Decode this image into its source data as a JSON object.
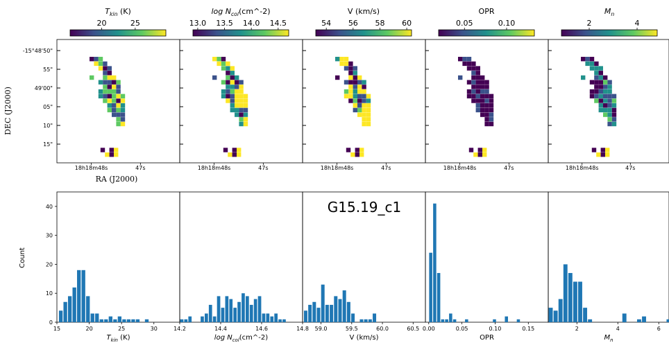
{
  "figure": {
    "title": "G15.19_c1",
    "map_ylabel": "DEC (J2000)",
    "map_xlabel": "RA (J2000)",
    "hist_ylabel": "Count",
    "ra_ticks": [
      "18h18m48s",
      "47s"
    ],
    "dec_ticks": [
      "-15°48'50\"",
      "55\"",
      "49'00\"",
      "05\"",
      "10\"",
      "15\""
    ]
  },
  "colormap": [
    "#440154",
    "#3b528b",
    "#21918c",
    "#5ec962",
    "#fde725"
  ],
  "colorbars": [
    {
      "label": "T_kin (K)",
      "ticks": [
        "20",
        "25"
      ]
    },
    {
      "label": "log N_col(cm^-2)",
      "ticks": [
        "13.0",
        "13.5",
        "14.0",
        "14.5"
      ]
    },
    {
      "label": "V (km/s)",
      "ticks": [
        "54",
        "56",
        "58",
        "60"
      ]
    },
    {
      "label": "OPR",
      "ticks": [
        "0.05",
        "0.10"
      ]
    },
    {
      "label": "M_n",
      "ticks": [
        "2",
        "4"
      ]
    }
  ],
  "chart_data": [
    {
      "type": "bar",
      "panel": "T_kin (K)",
      "xlabel": "T_kin (K)",
      "ylabel": "Count",
      "xlim": [
        15,
        34
      ],
      "ylim": [
        0,
        45
      ],
      "xticks": [
        15,
        20,
        25,
        30
      ],
      "yticks": [
        0,
        10,
        20,
        30,
        40
      ],
      "x": [
        15.6,
        16.3,
        17.0,
        17.7,
        18.4,
        19.1,
        19.8,
        20.5,
        21.2,
        21.9,
        22.6,
        23.3,
        24.0,
        24.7,
        25.4,
        26.1,
        26.8,
        27.5,
        28.2,
        28.9,
        29.6,
        30.3,
        31.0,
        31.7,
        32.4,
        33.1
      ],
      "values": [
        4,
        7,
        9,
        12,
        18,
        18,
        9,
        3,
        3,
        1,
        1,
        2,
        1,
        2,
        1,
        1,
        1,
        1,
        0,
        1,
        0,
        0,
        0,
        0,
        0,
        0
      ]
    },
    {
      "type": "bar",
      "panel": "log N_col",
      "xlabel": "log N_col(cm^-2)",
      "ylabel": "Count",
      "xlim": [
        14.2,
        14.8
      ],
      "ylim": [
        0,
        45
      ],
      "xticks": [
        "14.2",
        "14.4",
        "14.6",
        "14.8"
      ],
      "yticks": [
        0,
        10,
        20,
        30,
        40
      ],
      "x": [
        14.21,
        14.23,
        14.25,
        14.27,
        14.29,
        14.31,
        14.33,
        14.35,
        14.37,
        14.39,
        14.41,
        14.43,
        14.45,
        14.47,
        14.49,
        14.51,
        14.53,
        14.55,
        14.57,
        14.59,
        14.61,
        14.63,
        14.65,
        14.67,
        14.69,
        14.71,
        14.73,
        14.75,
        14.77,
        14.79
      ],
      "values": [
        1,
        1,
        2,
        0,
        0,
        2,
        3,
        6,
        2,
        9,
        5,
        9,
        8,
        5,
        7,
        10,
        9,
        6,
        8,
        9,
        3,
        3,
        2,
        3,
        1,
        1,
        0,
        0,
        0,
        0
      ]
    },
    {
      "type": "bar",
      "panel": "V (km/s)",
      "xlabel": "V (km/s)",
      "ylabel": "Count",
      "xlim": [
        58.7,
        60.7
      ],
      "ylim": [
        0,
        45
      ],
      "xticks": [
        "59.0",
        "59.5",
        "60.0",
        "60.5"
      ],
      "yticks": [
        0,
        10,
        20,
        30,
        40
      ],
      "x": [
        58.75,
        58.82,
        58.89,
        58.96,
        59.03,
        59.1,
        59.17,
        59.24,
        59.31,
        59.38,
        59.45,
        59.52,
        59.59,
        59.66,
        59.73,
        59.8,
        59.87,
        59.94,
        60.01,
        60.08,
        60.15,
        60.22,
        60.29,
        60.36,
        60.43,
        60.5,
        60.57,
        60.64
      ],
      "values": [
        4,
        6,
        7,
        5,
        13,
        6,
        6,
        9,
        8,
        11,
        7,
        3,
        0,
        1,
        1,
        1,
        3,
        0,
        0,
        0,
        0,
        0,
        0,
        0,
        0,
        0,
        0,
        0
      ]
    },
    {
      "type": "bar",
      "panel": "OPR",
      "xlabel": "OPR",
      "ylabel": "Count",
      "xlim": [
        -0.005,
        0.18
      ],
      "ylim": [
        0,
        45
      ],
      "xticks": [
        "0.00",
        "0.05",
        "0.10",
        "0.15"
      ],
      "yticks": [
        0,
        10,
        20,
        30,
        40
      ],
      "x": [
        0.003,
        0.009,
        0.015,
        0.021,
        0.027,
        0.033,
        0.039,
        0.045,
        0.051,
        0.057,
        0.063,
        0.069,
        0.075,
        0.081,
        0.087,
        0.093,
        0.099,
        0.105,
        0.111,
        0.117,
        0.123,
        0.129,
        0.135,
        0.141,
        0.147,
        0.153,
        0.159,
        0.165,
        0.171,
        0.177
      ],
      "values": [
        24,
        41,
        17,
        1,
        1,
        3,
        1,
        0,
        0,
        1,
        0,
        0,
        0,
        0,
        0,
        0,
        1,
        0,
        0,
        2,
        0,
        0,
        1,
        0,
        0,
        0,
        0,
        0,
        0,
        0
      ]
    },
    {
      "type": "bar",
      "panel": "M_n",
      "xlabel": "M_n",
      "ylabel": "Count",
      "xlim": [
        0.6,
        6.5
      ],
      "ylim": [
        0,
        45
      ],
      "xticks": [
        2,
        4,
        6
      ],
      "yticks": [
        0,
        10,
        20,
        30,
        40
      ],
      "x": [
        0.72,
        0.96,
        1.2,
        1.44,
        1.68,
        1.92,
        2.16,
        2.4,
        2.64,
        2.88,
        3.12,
        3.36,
        3.6,
        3.84,
        4.08,
        4.32,
        4.56,
        4.8,
        5.04,
        5.28,
        5.52,
        5.76,
        6.0,
        6.24,
        6.48
      ],
      "values": [
        5,
        4,
        8,
        20,
        17,
        14,
        14,
        5,
        1,
        0,
        0,
        0,
        0,
        0,
        0,
        3,
        0,
        0,
        1,
        2,
        0,
        0,
        0,
        0,
        1
      ]
    }
  ]
}
